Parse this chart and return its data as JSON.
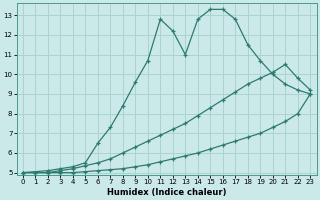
{
  "xlabel": "Humidex (Indice chaleur)",
  "background_color": "#cce9e9",
  "grid_color": "#aad4cc",
  "line_color": "#2d7a6e",
  "xlim": [
    -0.5,
    23.5
  ],
  "ylim": [
    4.9,
    13.6
  ],
  "xticks": [
    0,
    1,
    2,
    3,
    4,
    5,
    6,
    7,
    8,
    9,
    10,
    11,
    12,
    13,
    14,
    15,
    16,
    17,
    18,
    19,
    20,
    21,
    22,
    23
  ],
  "yticks": [
    5,
    6,
    7,
    8,
    9,
    10,
    11,
    12,
    13
  ],
  "line1_x": [
    0,
    1,
    2,
    3,
    4,
    5,
    6,
    7,
    8,
    9,
    10,
    11,
    12,
    13,
    14,
    15,
    16,
    17,
    18,
    19,
    20,
    21,
    22,
    23
  ],
  "line1_y": [
    5.0,
    5.0,
    5.0,
    5.0,
    5.0,
    5.05,
    5.1,
    5.15,
    5.2,
    5.3,
    5.4,
    5.55,
    5.7,
    5.85,
    6.0,
    6.2,
    6.4,
    6.6,
    6.8,
    7.0,
    7.3,
    7.6,
    8.0,
    9.0
  ],
  "line2_x": [
    0,
    1,
    2,
    3,
    4,
    5,
    6,
    7,
    8,
    9,
    10,
    11,
    12,
    13,
    14,
    15,
    16,
    17,
    18,
    19,
    20,
    21,
    22,
    23
  ],
  "line2_y": [
    5.0,
    5.0,
    5.0,
    5.1,
    5.2,
    5.35,
    5.5,
    5.7,
    6.0,
    6.3,
    6.6,
    6.9,
    7.2,
    7.5,
    7.9,
    8.3,
    8.7,
    9.1,
    9.5,
    9.8,
    10.1,
    10.5,
    9.8,
    9.2
  ],
  "line3_x": [
    0,
    2,
    3,
    4,
    5,
    6,
    7,
    8,
    9,
    10,
    11,
    12,
    13,
    14,
    15,
    16,
    17,
    18,
    19,
    20,
    21,
    22,
    23
  ],
  "line3_y": [
    5.0,
    5.1,
    5.2,
    5.3,
    5.5,
    6.5,
    7.3,
    8.4,
    9.6,
    10.7,
    12.8,
    12.2,
    11.0,
    12.8,
    13.3,
    13.3,
    12.8,
    11.5,
    10.7,
    10.0,
    9.5,
    9.2,
    9.0
  ]
}
